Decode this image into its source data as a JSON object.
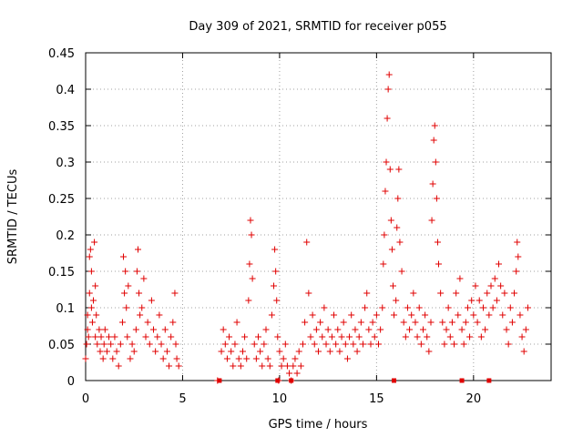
{
  "chart_data": {
    "type": "scatter",
    "title": "Day 309 of 2021, SRMTID for receiver p055",
    "xlabel": "GPS time / hours",
    "ylabel": "SRMTID / TECUs",
    "xlim": [
      0,
      24
    ],
    "ylim": [
      0,
      0.45
    ],
    "grid": true,
    "x_ticks": [
      0,
      5,
      10,
      15,
      20
    ],
    "x_tick_labels": [
      "0",
      "5",
      "10",
      "15",
      "20"
    ],
    "y_ticks": [
      0,
      0.05,
      0.1,
      0.15,
      0.2,
      0.25,
      0.3,
      0.35,
      0.4,
      0.45
    ],
    "y_tick_labels": [
      "0",
      "0.05",
      "0.1",
      "0.15",
      "0.2",
      "0.25",
      "0.3",
      "0.35",
      "0.4",
      "0.45"
    ],
    "marker": "+",
    "color": "#e00000",
    "series": [
      {
        "name": "SRMTID",
        "points": [
          [
            0.0,
            0.03
          ],
          [
            0.05,
            0.05
          ],
          [
            0.1,
            0.07
          ],
          [
            0.1,
            0.09
          ],
          [
            0.15,
            0.06
          ],
          [
            0.2,
            0.12
          ],
          [
            0.2,
            0.17
          ],
          [
            0.25,
            0.18
          ],
          [
            0.3,
            0.15
          ],
          [
            0.3,
            0.1
          ],
          [
            0.35,
            0.08
          ],
          [
            0.4,
            0.11
          ],
          [
            0.45,
            0.19
          ],
          [
            0.5,
            0.06
          ],
          [
            0.5,
            0.13
          ],
          [
            0.55,
            0.09
          ],
          [
            0.6,
            0.05
          ],
          [
            0.7,
            0.07
          ],
          [
            0.75,
            0.04
          ],
          [
            0.8,
            0.06
          ],
          [
            0.9,
            0.03
          ],
          [
            0.95,
            0.05
          ],
          [
            1.0,
            0.07
          ],
          [
            1.1,
            0.04
          ],
          [
            1.2,
            0.06
          ],
          [
            1.3,
            0.05
          ],
          [
            1.4,
            0.03
          ],
          [
            1.5,
            0.06
          ],
          [
            1.6,
            0.04
          ],
          [
            1.7,
            0.02
          ],
          [
            1.8,
            0.05
          ],
          [
            1.9,
            0.08
          ],
          [
            1.95,
            0.17
          ],
          [
            2.0,
            0.12
          ],
          [
            2.05,
            0.15
          ],
          [
            2.1,
            0.1
          ],
          [
            2.15,
            0.06
          ],
          [
            2.2,
            0.13
          ],
          [
            2.3,
            0.03
          ],
          [
            2.4,
            0.05
          ],
          [
            2.5,
            0.04
          ],
          [
            2.6,
            0.07
          ],
          [
            2.65,
            0.15
          ],
          [
            2.7,
            0.18
          ],
          [
            2.75,
            0.12
          ],
          [
            2.8,
            0.09
          ],
          [
            2.9,
            0.1
          ],
          [
            3.0,
            0.14
          ],
          [
            3.1,
            0.06
          ],
          [
            3.2,
            0.08
          ],
          [
            3.3,
            0.05
          ],
          [
            3.4,
            0.11
          ],
          [
            3.5,
            0.07
          ],
          [
            3.6,
            0.04
          ],
          [
            3.7,
            0.06
          ],
          [
            3.8,
            0.09
          ],
          [
            3.9,
            0.05
          ],
          [
            4.0,
            0.03
          ],
          [
            4.1,
            0.07
          ],
          [
            4.2,
            0.04
          ],
          [
            4.3,
            0.02
          ],
          [
            4.4,
            0.06
          ],
          [
            4.5,
            0.08
          ],
          [
            4.6,
            0.12
          ],
          [
            4.65,
            0.05
          ],
          [
            4.7,
            0.03
          ],
          [
            4.8,
            0.02
          ],
          [
            6.8,
            0.0
          ],
          [
            7.0,
            0.04
          ],
          [
            7.1,
            0.07
          ],
          [
            7.2,
            0.05
          ],
          [
            7.3,
            0.03
          ],
          [
            7.4,
            0.06
          ],
          [
            7.5,
            0.04
          ],
          [
            7.6,
            0.02
          ],
          [
            7.7,
            0.05
          ],
          [
            7.8,
            0.08
          ],
          [
            7.9,
            0.03
          ],
          [
            8.0,
            0.02
          ],
          [
            8.1,
            0.04
          ],
          [
            8.2,
            0.06
          ],
          [
            8.3,
            0.03
          ],
          [
            8.4,
            0.11
          ],
          [
            8.45,
            0.16
          ],
          [
            8.5,
            0.22
          ],
          [
            8.55,
            0.2
          ],
          [
            8.6,
            0.14
          ],
          [
            8.7,
            0.05
          ],
          [
            8.8,
            0.03
          ],
          [
            8.9,
            0.06
          ],
          [
            9.0,
            0.04
          ],
          [
            9.1,
            0.02
          ],
          [
            9.2,
            0.05
          ],
          [
            9.3,
            0.07
          ],
          [
            9.4,
            0.03
          ],
          [
            9.5,
            0.02
          ],
          [
            9.6,
            0.09
          ],
          [
            9.7,
            0.13
          ],
          [
            9.75,
            0.18
          ],
          [
            9.8,
            0.15
          ],
          [
            9.85,
            0.11
          ],
          [
            9.9,
            0.06
          ],
          [
            9.95,
            0.0
          ],
          [
            10.0,
            0.04
          ],
          [
            10.1,
            0.02
          ],
          [
            10.2,
            0.03
          ],
          [
            10.3,
            0.05
          ],
          [
            10.4,
            0.02
          ],
          [
            10.5,
            0.01
          ],
          [
            10.6,
            0.0
          ],
          [
            10.7,
            0.02
          ],
          [
            10.8,
            0.03
          ],
          [
            10.9,
            0.01
          ],
          [
            11.0,
            0.04
          ],
          [
            11.1,
            0.02
          ],
          [
            11.2,
            0.05
          ],
          [
            11.3,
            0.08
          ],
          [
            11.4,
            0.19
          ],
          [
            11.5,
            0.12
          ],
          [
            11.6,
            0.06
          ],
          [
            11.7,
            0.09
          ],
          [
            11.8,
            0.05
          ],
          [
            11.9,
            0.07
          ],
          [
            12.0,
            0.04
          ],
          [
            12.1,
            0.08
          ],
          [
            12.2,
            0.06
          ],
          [
            12.3,
            0.1
          ],
          [
            12.4,
            0.05
          ],
          [
            12.5,
            0.07
          ],
          [
            12.6,
            0.04
          ],
          [
            12.7,
            0.06
          ],
          [
            12.8,
            0.09
          ],
          [
            12.9,
            0.05
          ],
          [
            13.0,
            0.07
          ],
          [
            13.1,
            0.04
          ],
          [
            13.2,
            0.06
          ],
          [
            13.3,
            0.08
          ],
          [
            13.4,
            0.05
          ],
          [
            13.5,
            0.03
          ],
          [
            13.6,
            0.06
          ],
          [
            13.7,
            0.09
          ],
          [
            13.8,
            0.05
          ],
          [
            13.9,
            0.07
          ],
          [
            14.0,
            0.04
          ],
          [
            14.1,
            0.06
          ],
          [
            14.2,
            0.08
          ],
          [
            14.3,
            0.05
          ],
          [
            14.4,
            0.1
          ],
          [
            14.5,
            0.12
          ],
          [
            14.6,
            0.07
          ],
          [
            14.7,
            0.05
          ],
          [
            14.8,
            0.08
          ],
          [
            14.9,
            0.06
          ],
          [
            15.0,
            0.09
          ],
          [
            15.1,
            0.05
          ],
          [
            15.2,
            0.07
          ],
          [
            15.3,
            0.1
          ],
          [
            15.35,
            0.16
          ],
          [
            15.4,
            0.2
          ],
          [
            15.45,
            0.26
          ],
          [
            15.5,
            0.3
          ],
          [
            15.55,
            0.36
          ],
          [
            15.6,
            0.4
          ],
          [
            15.65,
            0.42
          ],
          [
            15.7,
            0.29
          ],
          [
            15.75,
            0.22
          ],
          [
            15.8,
            0.18
          ],
          [
            15.85,
            0.13
          ],
          [
            15.9,
            0.09
          ],
          [
            16.0,
            0.11
          ],
          [
            16.05,
            0.21
          ],
          [
            16.1,
            0.25
          ],
          [
            16.15,
            0.29
          ],
          [
            16.2,
            0.19
          ],
          [
            16.3,
            0.15
          ],
          [
            16.4,
            0.08
          ],
          [
            16.5,
            0.06
          ],
          [
            16.6,
            0.1
          ],
          [
            16.7,
            0.07
          ],
          [
            16.8,
            0.09
          ],
          [
            16.9,
            0.12
          ],
          [
            17.0,
            0.08
          ],
          [
            17.1,
            0.06
          ],
          [
            17.2,
            0.1
          ],
          [
            17.3,
            0.05
          ],
          [
            17.4,
            0.07
          ],
          [
            17.5,
            0.09
          ],
          [
            17.6,
            0.06
          ],
          [
            17.7,
            0.04
          ],
          [
            17.8,
            0.08
          ],
          [
            17.85,
            0.22
          ],
          [
            17.9,
            0.27
          ],
          [
            17.95,
            0.33
          ],
          [
            18.0,
            0.35
          ],
          [
            18.05,
            0.3
          ],
          [
            18.1,
            0.25
          ],
          [
            18.15,
            0.19
          ],
          [
            18.2,
            0.16
          ],
          [
            18.3,
            0.12
          ],
          [
            18.4,
            0.08
          ],
          [
            18.5,
            0.05
          ],
          [
            18.6,
            0.07
          ],
          [
            18.7,
            0.1
          ],
          [
            18.8,
            0.06
          ],
          [
            18.9,
            0.08
          ],
          [
            19.0,
            0.05
          ],
          [
            19.1,
            0.12
          ],
          [
            19.2,
            0.09
          ],
          [
            19.3,
            0.14
          ],
          [
            19.4,
            0.07
          ],
          [
            19.5,
            0.05
          ],
          [
            19.6,
            0.08
          ],
          [
            19.7,
            0.1
          ],
          [
            19.8,
            0.06
          ],
          [
            19.9,
            0.11
          ],
          [
            20.0,
            0.09
          ],
          [
            20.1,
            0.13
          ],
          [
            20.2,
            0.08
          ],
          [
            20.3,
            0.11
          ],
          [
            20.4,
            0.06
          ],
          [
            20.5,
            0.1
          ],
          [
            20.6,
            0.07
          ],
          [
            20.7,
            0.12
          ],
          [
            20.8,
            0.09
          ],
          [
            20.9,
            0.13
          ],
          [
            21.0,
            0.1
          ],
          [
            21.1,
            0.14
          ],
          [
            21.2,
            0.11
          ],
          [
            21.3,
            0.16
          ],
          [
            21.4,
            0.13
          ],
          [
            21.5,
            0.09
          ],
          [
            21.6,
            0.12
          ],
          [
            21.7,
            0.07
          ],
          [
            21.8,
            0.05
          ],
          [
            21.9,
            0.1
          ],
          [
            22.0,
            0.08
          ],
          [
            22.1,
            0.12
          ],
          [
            22.2,
            0.15
          ],
          [
            22.25,
            0.19
          ],
          [
            22.3,
            0.17
          ],
          [
            22.4,
            0.09
          ],
          [
            22.5,
            0.06
          ],
          [
            22.6,
            0.04
          ],
          [
            22.7,
            0.07
          ],
          [
            22.8,
            0.1
          ]
        ]
      }
    ],
    "baseline_markers_x": [
      6.9,
      9.9,
      10.6,
      15.9,
      19.4,
      20.8
    ]
  }
}
